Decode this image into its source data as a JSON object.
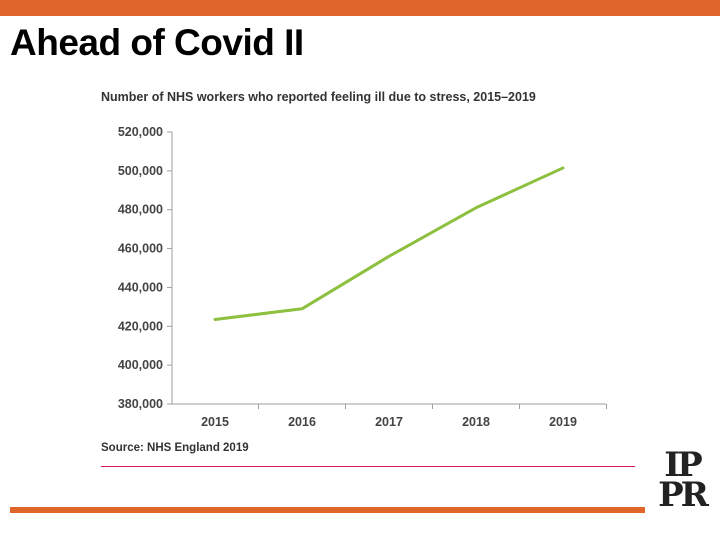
{
  "slide": {
    "title": "Ahead of Covid II",
    "accent_color": "#e0652b",
    "rule_color": "#d81b60"
  },
  "chart_title": "Number of NHS workers who reported feeling ill due to stress, 2015–2019",
  "source": "Source: NHS England 2019",
  "logo": {
    "row1": "IP",
    "row2": "PR"
  },
  "chart_data": {
    "type": "line",
    "title": "Number of NHS workers who reported feeling ill due to stress, 2015–2019",
    "categories": [
      "2015",
      "2016",
      "2017",
      "2018",
      "2019"
    ],
    "series": [
      {
        "values": [
          423500,
          429000,
          456000,
          481000,
          501500
        ],
        "color": "#8dc03f"
      }
    ],
    "yticks": [
      380000,
      400000,
      420000,
      440000,
      460000,
      480000,
      500000,
      520000
    ],
    "ytick_labels": [
      "380,000",
      "400,000",
      "420,000",
      "440,000",
      "460,000",
      "480,000",
      "500,000",
      "520,000"
    ],
    "ylim": [
      380000,
      520000
    ],
    "xlabel": "",
    "ylabel": "",
    "grid": false,
    "legend": "none"
  }
}
